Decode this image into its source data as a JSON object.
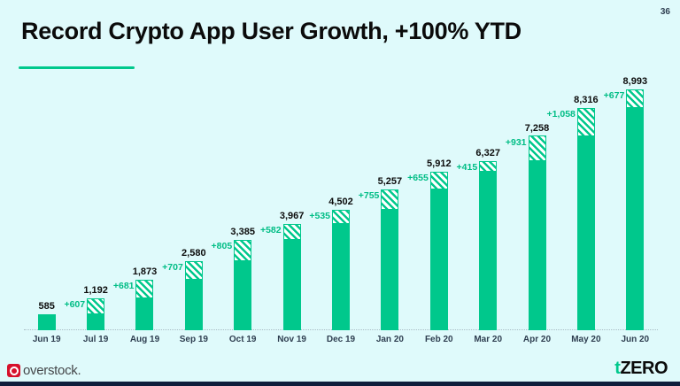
{
  "page": {
    "number": "36",
    "background": "#DFFAFB"
  },
  "header": {
    "title": "Record Crypto App User Growth, +100% YTD"
  },
  "chart_data": {
    "type": "bar",
    "subtype": "stacked-cumulative-growth",
    "title": "Record Crypto App User Growth, +100% YTD",
    "categories": [
      "Jun 19",
      "Jul 19",
      "Aug 19",
      "Sep 19",
      "Oct 19",
      "Nov 19",
      "Dec 19",
      "Jan 20",
      "Feb 20",
      "Mar 20",
      "Apr 20",
      "May 20",
      "Jun 20"
    ],
    "totals": [
      585,
      1192,
      1873,
      2580,
      3385,
      3967,
      4502,
      5257,
      5912,
      6327,
      7258,
      8316,
      8993
    ],
    "total_labels": [
      "585",
      "1,192",
      "1,873",
      "2,580",
      "3,385",
      "3,967",
      "4,502",
      "5,257",
      "5,912",
      "6,327",
      "7,258",
      "8,316",
      "8,993"
    ],
    "increments": [
      0,
      607,
      681,
      707,
      805,
      582,
      535,
      755,
      655,
      415,
      931,
      1058,
      677
    ],
    "increment_labels": [
      "",
      "+607",
      "+681",
      "+707",
      "+805",
      "+582",
      "+535",
      "+755",
      "+655",
      "+415",
      "+931",
      "+1,058",
      "+677"
    ],
    "series": [
      {
        "name": "prior-cumulative-users",
        "values": [
          585,
          585,
          1192,
          1873,
          2580,
          3385,
          3967,
          4502,
          5257,
          5912,
          6327,
          7258,
          8316
        ]
      },
      {
        "name": "monthly-increase",
        "values": [
          0,
          607,
          681,
          707,
          805,
          582,
          535,
          755,
          655,
          415,
          931,
          1058,
          677
        ]
      }
    ],
    "ylim": [
      0,
      8993
    ],
    "grid": false,
    "legend": "none",
    "colors": {
      "bar": "#00C88C",
      "hatch_stripe": "#00C88C",
      "hatch_bg": "#FFFFFF",
      "total_label": "#0B0B0B",
      "increment_label": "#00BD85",
      "axis_label": "#2E3E50",
      "baseline": "#A9BCC4"
    }
  },
  "footer": {
    "overstock": {
      "label": "overstock.",
      "icon_color": "#D6112C"
    },
    "tzero": {
      "t": "t",
      "zero": "ZERO",
      "accent": "#00C88C"
    }
  }
}
